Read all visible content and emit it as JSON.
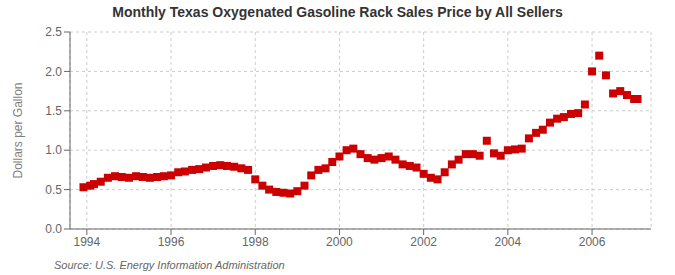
{
  "chart_data": {
    "type": "scatter",
    "title": "Monthly Texas Oxygenated Gasoline Rack Sales Price by All Sellers",
    "ylabel": "Dollars per Gallon",
    "annotation": "Source: U.S. Energy Information Administration",
    "color": "#cc0000",
    "marker": "square",
    "grid": true,
    "xlim": [
      1993.6,
      2007.4
    ],
    "xticks": [
      1994,
      1996,
      1998,
      2000,
      2002,
      2004,
      2006
    ],
    "ylim": [
      0.0,
      2.5
    ],
    "yticks": [
      {
        "value": 0.0,
        "label": "0.0"
      },
      0.5,
      {
        "value": 1.0,
        "label": "1.0"
      },
      1.5,
      {
        "value": 2.0,
        "label": "2.0"
      },
      2.5
    ],
    "x": [
      1993.92,
      1994.08,
      1994.17,
      1994.33,
      1994.5,
      1994.67,
      1994.83,
      1995.0,
      1995.17,
      1995.33,
      1995.5,
      1995.67,
      1995.83,
      1996.0,
      1996.17,
      1996.33,
      1996.5,
      1996.67,
      1996.83,
      1997.0,
      1997.17,
      1997.33,
      1997.5,
      1997.67,
      1997.83,
      1998.0,
      1998.17,
      1998.33,
      1998.5,
      1998.67,
      1998.83,
      1999.0,
      1999.17,
      1999.33,
      1999.5,
      1999.67,
      1999.83,
      2000.0,
      2000.17,
      2000.33,
      2000.5,
      2000.67,
      2000.83,
      2001.0,
      2001.17,
      2001.33,
      2001.5,
      2001.67,
      2001.83,
      2002.0,
      2002.17,
      2002.33,
      2002.5,
      2002.67,
      2002.83,
      2003.0,
      2003.17,
      2003.33,
      2003.5,
      2003.67,
      2003.83,
      2004.0,
      2004.17,
      2004.33,
      2004.5,
      2004.67,
      2004.83,
      2005.0,
      2005.17,
      2005.33,
      2005.5,
      2005.67,
      2005.83,
      2006.0,
      2006.17,
      2006.33,
      2006.5,
      2006.67,
      2006.83,
      2007.0,
      2007.08
    ],
    "values": [
      0.53,
      0.55,
      0.57,
      0.6,
      0.65,
      0.67,
      0.66,
      0.65,
      0.67,
      0.66,
      0.65,
      0.66,
      0.67,
      0.68,
      0.72,
      0.73,
      0.75,
      0.76,
      0.78,
      0.8,
      0.81,
      0.8,
      0.79,
      0.77,
      0.75,
      0.63,
      0.55,
      0.5,
      0.47,
      0.46,
      0.45,
      0.48,
      0.55,
      0.68,
      0.75,
      0.77,
      0.85,
      0.92,
      1.0,
      1.02,
      0.95,
      0.9,
      0.88,
      0.9,
      0.92,
      0.88,
      0.82,
      0.8,
      0.78,
      0.7,
      0.65,
      0.63,
      0.72,
      0.82,
      0.88,
      0.95,
      0.95,
      0.93,
      1.12,
      0.96,
      0.93,
      1.0,
      1.01,
      1.02,
      1.15,
      1.22,
      1.26,
      1.35,
      1.4,
      1.42,
      1.46,
      1.47,
      1.58,
      2.0,
      2.2,
      1.95,
      1.72,
      1.75,
      1.7,
      1.65,
      1.65
    ]
  }
}
